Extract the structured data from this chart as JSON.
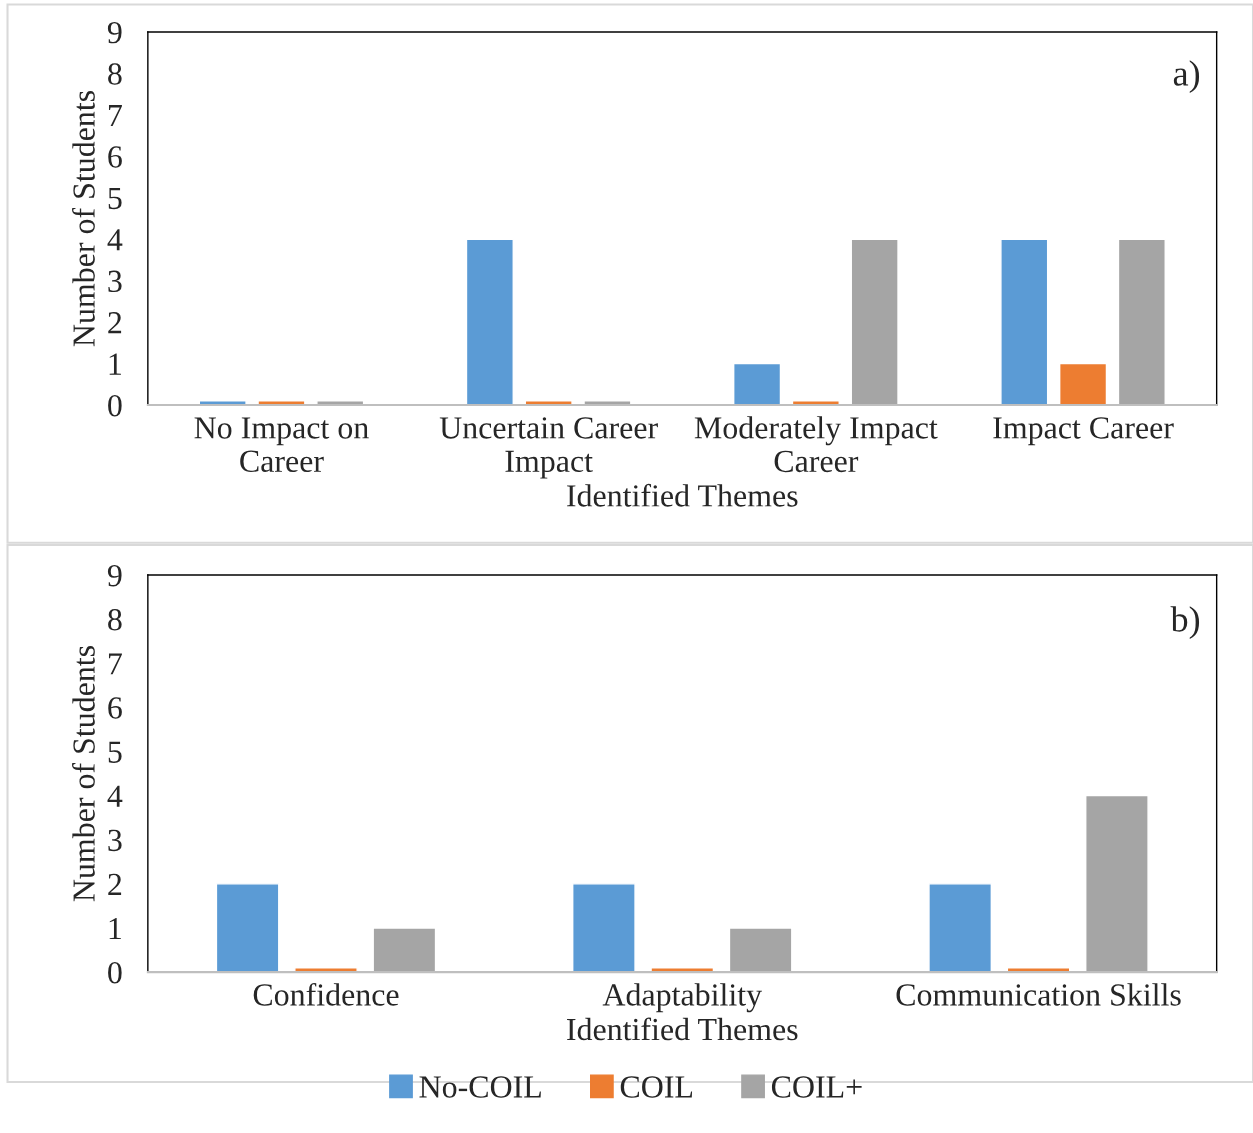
{
  "chart_data": [
    {
      "type": "bar",
      "xlabel": "Identified Themes",
      "ylabel": "Number of Students",
      "annotations": [
        "a)"
      ],
      "categories": [
        "No Impact on\nCareer",
        "Uncertain Career\nImpact",
        "Moderately Impact\nCareer",
        "Impact Career"
      ],
      "series": [
        {
          "color": "#5b9bd5",
          "values": [
            0.1,
            4,
            1,
            4
          ]
        },
        {
          "color": "#ed7d31",
          "values": [
            0.1,
            0.1,
            0.1,
            1
          ]
        },
        {
          "color": "#a5a5a5",
          "values": [
            0.1,
            0.1,
            4,
            4
          ]
        }
      ],
      "ylim": [
        0,
        9
      ],
      "yticks": [
        0,
        1,
        2,
        3,
        4,
        5,
        6,
        7,
        8,
        9
      ],
      "grid": false
    },
    {
      "type": "bar",
      "xlabel": "Identified Themes",
      "ylabel": "Number of Students",
      "annotations": [
        "b)"
      ],
      "categories": [
        "Confidence",
        "Adaptability",
        "Communication Skills"
      ],
      "series": [
        {
          "name": "No-COIL",
          "color": "#5b9bd5",
          "values": [
            2,
            2,
            2
          ]
        },
        {
          "name": "COIL",
          "color": "#ed7d31",
          "values": [
            0.1,
            0.1,
            0.1
          ]
        },
        {
          "name": "COIL+",
          "color": "#a5a5a5",
          "values": [
            1,
            1,
            4
          ]
        }
      ],
      "ylim": [
        0,
        9
      ],
      "yticks": [
        0,
        1,
        2,
        3,
        4,
        5,
        6,
        7,
        8,
        9
      ],
      "grid": false,
      "legend": "bottom"
    }
  ]
}
